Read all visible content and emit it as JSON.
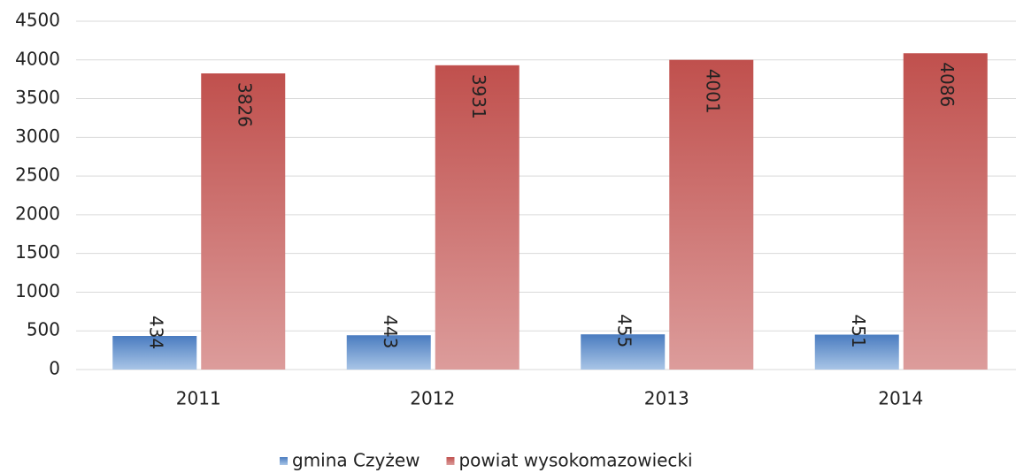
{
  "chart_data": {
    "type": "bar",
    "categories": [
      "2011",
      "2012",
      "2013",
      "2014"
    ],
    "series": [
      {
        "name": "gmina Czyżew",
        "color": "#4f81bd",
        "values": [
          434,
          443,
          455,
          451
        ]
      },
      {
        "name": "powiat wysokomazowiecki",
        "color": "#c0504d",
        "values": [
          3826,
          3931,
          4001,
          4086
        ]
      }
    ],
    "ylim": [
      0,
      4500
    ],
    "yticks": [
      0,
      500,
      1000,
      1500,
      2000,
      2500,
      3000,
      3500,
      4000,
      4500
    ],
    "grid": true,
    "legend": "bottom"
  }
}
